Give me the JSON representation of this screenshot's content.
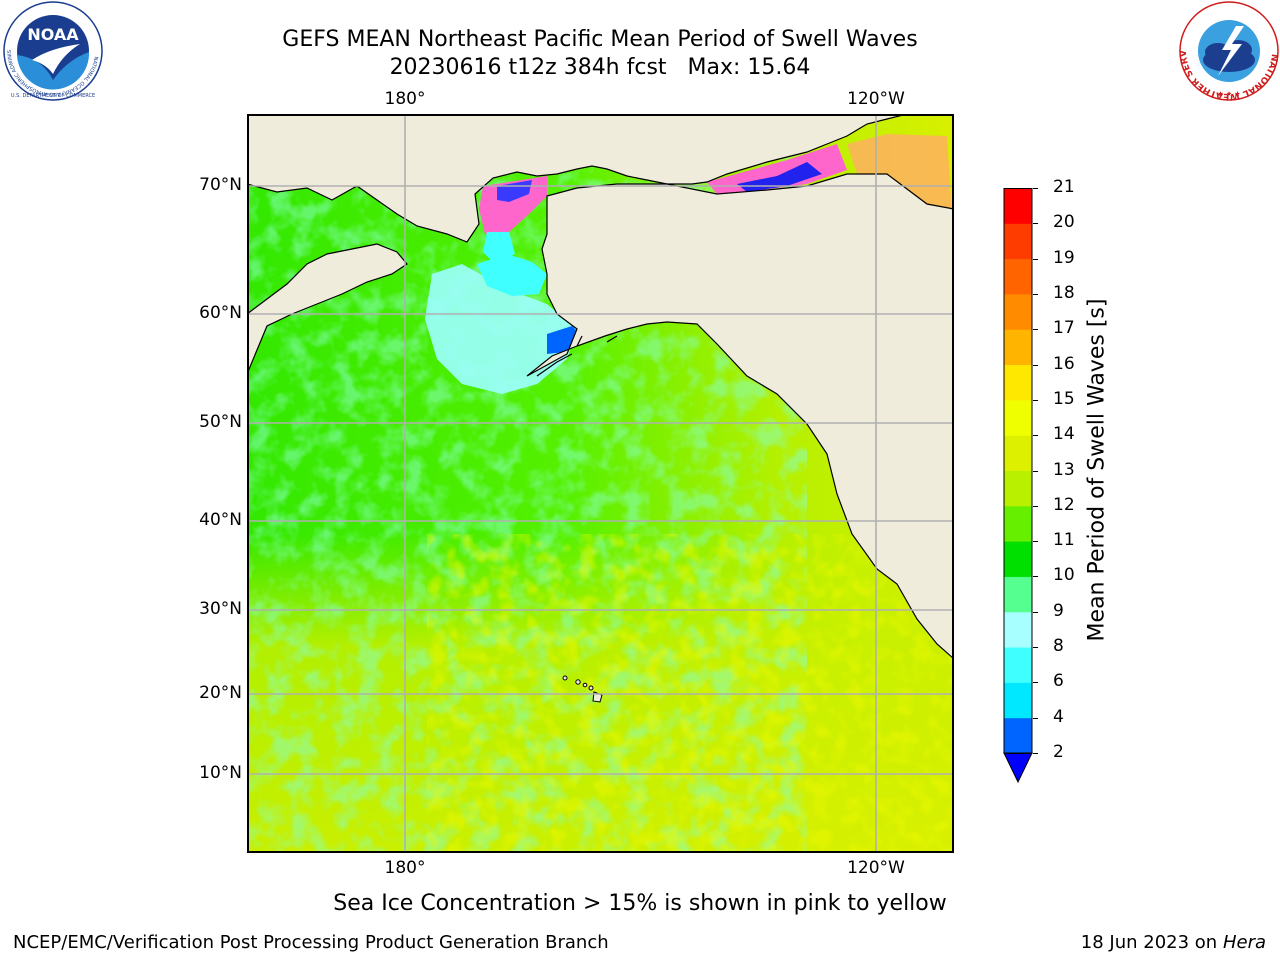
{
  "title": {
    "line1": "GEFS MEAN Northeast Pacific Mean Period of Swell Waves",
    "line2_date": "20230616 t12z 384h fcst",
    "line2_max": "Max: 15.64"
  },
  "map": {
    "lon_labels": [
      "180°",
      "120°W"
    ],
    "lat_labels": [
      "70°N",
      "60°N",
      "50°N",
      "40°N",
      "30°N",
      "20°N",
      "10°N"
    ],
    "colors": {
      "land": "#efecdc",
      "frame": "#000000",
      "grid": "#b0b0b0"
    }
  },
  "colorbar": {
    "label": "Mean Period of Swell Waves [s]",
    "ticks": [
      "21",
      "20",
      "19",
      "18",
      "17",
      "16",
      "15",
      "14",
      "13",
      "12",
      "11",
      "10",
      "9",
      "8",
      "6",
      "4",
      "2"
    ],
    "colors_bottom_to_top": [
      "#0064ff",
      "#00e8ff",
      "#40ffff",
      "#a8ffff",
      "#55ff90",
      "#00e000",
      "#66f000",
      "#b8f000",
      "#dcf000",
      "#f0ff00",
      "#ffe800",
      "#ffb400",
      "#ff8c00",
      "#ff6400",
      "#ff3c00",
      "#ff0000"
    ],
    "under_color": "#0000ff"
  },
  "note": "Sea Ice Concentration > 15% is shown in pink to yellow",
  "footer": {
    "left": "NCEP/EMC/Verification Post Processing Product Generation Branch",
    "right_date": "18 Jun 2023 on",
    "right_machine": "Hera"
  },
  "logos": {
    "noaa": {
      "text": "NOAA",
      "ring_text": "NATIONAL OCEANIC AND ATMOSPHERIC ADMINISTRATION",
      "bottom_text": "U.S. DEPARTMENT OF COMMERCE"
    },
    "nws": {
      "ring_text": "NATIONAL WEATHER SERVICE"
    }
  }
}
